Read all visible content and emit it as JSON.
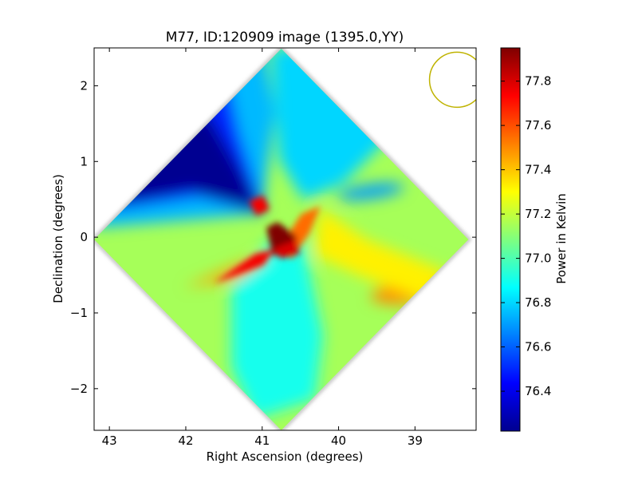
{
  "chart_data": {
    "type": "heatmap",
    "title": "M77, ID:120909 image (1395.0,YY)",
    "xlabel": "Right Ascension (degrees)",
    "ylabel": "Declination (degrees)",
    "colorbar_label": "Power in Kelvin",
    "xlim": [
      43.2,
      38.2
    ],
    "ylim": [
      -2.55,
      2.5
    ],
    "x_ticks": [
      43,
      42,
      41,
      40,
      39
    ],
    "x_tick_labels": [
      "43",
      "42",
      "41",
      "40",
      "39"
    ],
    "y_ticks": [
      2,
      1,
      0,
      -1,
      -2
    ],
    "y_tick_labels": [
      "2",
      "1",
      "0",
      "−1",
      "−2"
    ],
    "color_range": [
      76.22,
      77.95
    ],
    "colorbar_ticks": [
      76.4,
      76.6,
      76.8,
      77.0,
      77.2,
      77.4,
      77.6,
      77.8
    ],
    "colorbar_tick_labels": [
      "76.4",
      "76.6",
      "76.8",
      "77.0",
      "77.2",
      "77.4",
      "77.6",
      "77.8"
    ],
    "colormap": "jet",
    "footprint": {
      "shape": "diamond",
      "center": [
        40.75,
        -0.03
      ],
      "half_width_ra": 2.45,
      "half_height_dec": 2.52
    },
    "beam": {
      "shape": "circle",
      "center": [
        38.45,
        2.08
      ],
      "radius_ra": 0.36,
      "color": "#bfb300"
    },
    "features": [
      {
        "name": "background",
        "value": 77.15
      },
      {
        "name": "cold lobe upper-left",
        "ra": 42.2,
        "dec": 0.65,
        "value": 76.25
      },
      {
        "name": "cool region upper-right",
        "ra": 40.3,
        "dec": 1.5,
        "value": 76.75
      },
      {
        "name": "cool streak right",
        "ra": 39.8,
        "dec": 0.6,
        "value": 76.7
      },
      {
        "name": "cool region lower",
        "ra": 40.9,
        "dec": -1.3,
        "value": 76.9
      },
      {
        "name": "hot core",
        "ra": 40.75,
        "dec": -0.15,
        "value": 77.95
      },
      {
        "name": "hot arm left",
        "ra": 41.1,
        "dec": -0.3,
        "value": 77.75
      },
      {
        "name": "warm arm lower-left",
        "ra": 41.6,
        "dec": -0.55,
        "value": 77.45
      },
      {
        "name": "warm spot right",
        "ra": 39.2,
        "dec": -0.75,
        "value": 77.5
      }
    ]
  }
}
